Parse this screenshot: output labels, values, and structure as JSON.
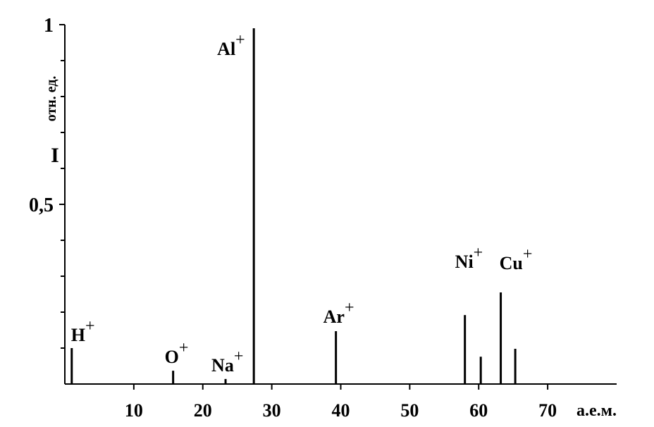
{
  "chart_data": {
    "type": "spectrum",
    "x": [
      1,
      15.7,
      23.3,
      27.4,
      39.3,
      58,
      60.3,
      63.2,
      65.3
    ],
    "values": [
      0.1,
      0.037,
      0.014,
      0.99,
      0.147,
      0.192,
      0.076,
      0.255,
      0.098
    ],
    "peak_labels": [
      {
        "text": "H",
        "charge": "+"
      },
      {
        "text": "O",
        "charge": "+"
      },
      {
        "text": "Na",
        "charge": "+"
      },
      {
        "text": "Al",
        "charge": "+"
      },
      {
        "text": "Ar",
        "charge": "+"
      },
      {
        "text": "Ni",
        "charge": "+"
      },
      null,
      {
        "text": "Cu",
        "charge": "+"
      },
      null
    ],
    "color": "#000000",
    "xlim": [
      0,
      80
    ],
    "xticks": [
      10,
      20,
      30,
      40,
      50,
      60,
      70
    ],
    "x_label": "а.е.м.",
    "ylim": [
      0,
      1
    ],
    "yticks": [
      {
        "value": 0.5,
        "label": "0,5"
      },
      1
    ],
    "y_minor_ticks": [
      0.1,
      0.2,
      0.3,
      0.4,
      0.6,
      0.7,
      0.8,
      0.9
    ],
    "y_label": {
      "symbol": "I",
      "unit": "отн. ед."
    }
  }
}
